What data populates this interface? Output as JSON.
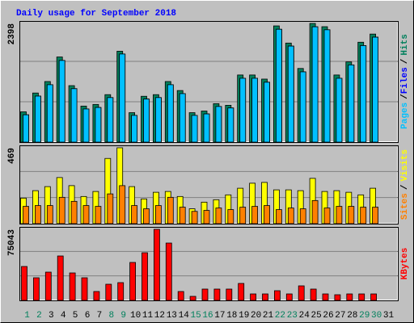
{
  "title": "Daily usage for September 2018",
  "legend_separator": "/",
  "chart_data": [
    {
      "type": "bar",
      "ylim": [
        0,
        2398
      ],
      "yticks": [
        2398
      ],
      "series": [
        {
          "name": "Hits",
          "color": "#00805C",
          "values": [
            612,
            992,
            1224,
            1720,
            1141,
            728,
            761,
            959,
            1836,
            595,
            926,
            959,
            1224,
            1042,
            595,
            628,
            777,
            744,
            1356,
            1356,
            1273,
            2348,
            2001,
            1488,
            2398,
            2332,
            1356,
            1621,
            2018,
            2183,
            null
          ]
        },
        {
          "name": "Files",
          "color": "#0000FF",
          "values": [
            552,
            930,
            1160,
            1650,
            1080,
            670,
            700,
            900,
            1780,
            540,
            870,
            900,
            1160,
            980,
            540,
            570,
            720,
            690,
            1290,
            1290,
            1210,
            2280,
            1940,
            1420,
            2330,
            2270,
            1290,
            1560,
            1950,
            2120,
            null
          ]
        },
        {
          "name": "Pages",
          "color": "#00C0FF",
          "values": [
            552,
            930,
            1160,
            1650,
            1080,
            670,
            700,
            900,
            1780,
            540,
            870,
            900,
            1160,
            980,
            540,
            570,
            720,
            690,
            1290,
            1290,
            1210,
            2280,
            1940,
            1420,
            2330,
            2270,
            1290,
            1560,
            1950,
            2120,
            null
          ]
        }
      ]
    },
    {
      "type": "bar",
      "ylim": [
        0,
        469
      ],
      "yticks": [
        469
      ],
      "series": [
        {
          "name": "Visits",
          "color": "#FFFF00",
          "values": [
            158,
            204,
            229,
            285,
            235,
            168,
            199,
            403,
            469,
            229,
            153,
            194,
            199,
            168,
            92,
            133,
            148,
            178,
            219,
            250,
            255,
            209,
            209,
            204,
            280,
            199,
            204,
            194,
            178,
            219,
            null
          ]
        },
        {
          "name": "Sites",
          "color": "#FF8000",
          "values": [
            107,
            112,
            112,
            163,
            138,
            112,
            107,
            184,
            235,
            112,
            92,
            112,
            163,
            102,
            76,
            82,
            97,
            87,
            102,
            107,
            112,
            87,
            97,
            92,
            143,
            97,
            107,
            107,
            102,
            102,
            null
          ]
        }
      ]
    },
    {
      "type": "bar",
      "ylim": [
        0,
        75043
      ],
      "yticks": [
        75043
      ],
      "categories": [
        "1",
        "2",
        "3",
        "4",
        "5",
        "6",
        "7",
        "8",
        "9",
        "10",
        "11",
        "12",
        "13",
        "14",
        "15",
        "16",
        "17",
        "18",
        "19",
        "20",
        "21",
        "22",
        "23",
        "24",
        "25",
        "26",
        "27",
        "28",
        "29",
        "30",
        "31"
      ],
      "category_colors": [
        "#00805C",
        "#00805C",
        "#000000",
        "#000000",
        "#000000",
        "#000000",
        "#000000",
        "#00805C",
        "#00805C",
        "#000000",
        "#000000",
        "#000000",
        "#000000",
        "#000000",
        "#00805C",
        "#00805C",
        "#000000",
        "#000000",
        "#000000",
        "#000000",
        "#000000",
        "#00805C",
        "#00805C",
        "#000000",
        "#000000",
        "#000000",
        "#000000",
        "#000000",
        "#00805C",
        "#00805C",
        "#000000"
      ],
      "series": [
        {
          "name": "KBytes",
          "color": "#FF0000",
          "values": [
            35816,
            23877,
            29846,
            46902,
            28994,
            23877,
            9380,
            17055,
            18761,
            40080,
            50313,
            75043,
            60546,
            9380,
            4264,
            11939,
            11939,
            11939,
            17908,
            6822,
            6822,
            10233,
            6822,
            15350,
            11939,
            6822,
            5969,
            6822,
            6822,
            6822,
            null
          ]
        }
      ]
    }
  ]
}
